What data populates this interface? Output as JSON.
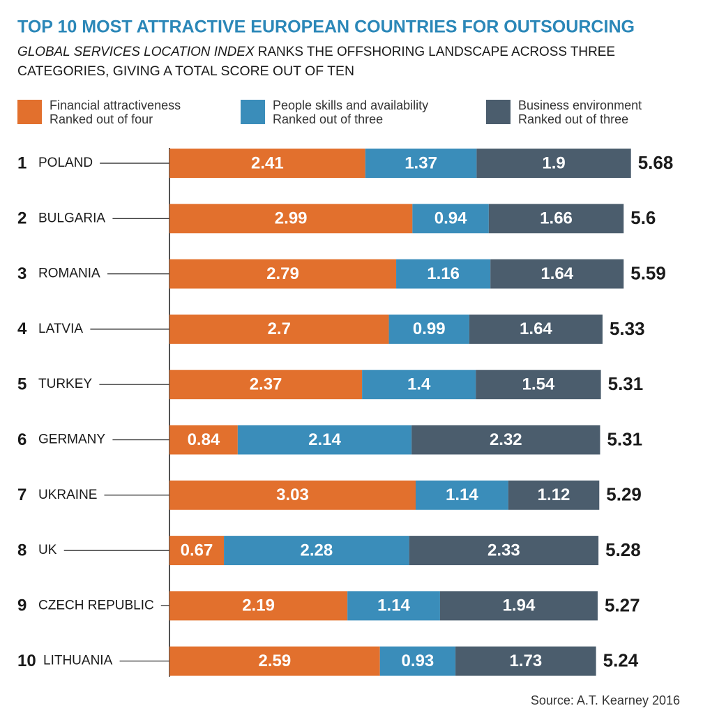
{
  "chart_data": {
    "type": "stacked-bar",
    "title": "TOP 10 MOST ATTRACTIVE EUROPEAN COUNTRIES FOR OUTSOURCING",
    "subtitle": [
      "GLOBAL SERVICES LOCATION INDEX",
      "RANKS THE OFFSHORING LANDSCAPE ACROSS THREE",
      "CATEGORIES, GIVING A TOTAL SCORE OUT OF TEN"
    ],
    "ranks": [
      1,
      2,
      3,
      4,
      5,
      6,
      7,
      8,
      9,
      10
    ],
    "categories": [
      "POLAND",
      "BULGARIA",
      "ROMANIA",
      "LATVIA",
      "TURKEY",
      "GERMANY",
      "UKRAINE",
      "UK",
      "CZECH REPUBLIC",
      "LITHUANIA"
    ],
    "series": [
      {
        "name": "Financial attractiveness",
        "note": "Ranked out of four",
        "color": "#e2702d",
        "values": [
          2.41,
          2.99,
          2.79,
          2.7,
          2.37,
          0.84,
          3.03,
          0.67,
          2.19,
          2.59
        ]
      },
      {
        "name": "People skills and availability",
        "note": "Ranked out of three",
        "color": "#3a8dba",
        "values": [
          1.37,
          0.94,
          1.16,
          0.99,
          1.4,
          2.14,
          1.14,
          2.28,
          1.14,
          0.93
        ]
      },
      {
        "name": "Business environment",
        "note": "Ranked out of three",
        "color": "#4b5d6d",
        "values": [
          1.9,
          1.66,
          1.64,
          1.64,
          1.54,
          2.32,
          1.12,
          2.33,
          1.94,
          1.73
        ]
      }
    ],
    "totals": [
      5.68,
      5.6,
      5.59,
      5.33,
      5.31,
      5.31,
      5.29,
      5.28,
      5.27,
      5.24
    ],
    "source": "Source: A.T. Kearney 2016"
  }
}
